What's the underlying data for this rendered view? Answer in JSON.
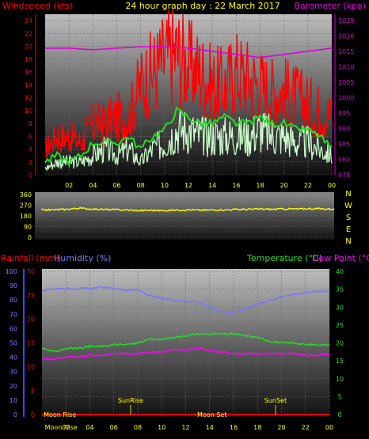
{
  "chart_data": [
    {
      "type": "line",
      "panel": "wind-barometer",
      "title": "24 hour graph day : 22 March 2017",
      "left_axis_label": "Windspeed (kts)",
      "right_axis_label": "Barometer (kpa)",
      "left_ticks": [
        "0",
        "2",
        "4",
        "6",
        "8",
        "10",
        "12",
        "14",
        "16",
        "18",
        "20",
        "22",
        "24"
      ],
      "right_ticks": [
        "975",
        "980",
        "985",
        "990",
        "995",
        "1000",
        "1005",
        "1010",
        "1015",
        "1020",
        "1025"
      ],
      "x_ticks": [
        "02",
        "04",
        "06",
        "08",
        "10",
        "12",
        "14",
        "16",
        "18",
        "20",
        "22",
        "00"
      ],
      "ylim_left": [
        0,
        25
      ],
      "ylim_right": [
        975,
        1027
      ],
      "xlim": [
        0,
        24
      ],
      "series": [
        {
          "key": "gust",
          "color": "#ff0000",
          "x": [
            0,
            1,
            2,
            3,
            4,
            5,
            6,
            7,
            8,
            9,
            10,
            11,
            12,
            13,
            14,
            15,
            16,
            17,
            18,
            19,
            20,
            21,
            22,
            23,
            24
          ],
          "values": [
            4,
            6,
            6,
            5,
            8,
            8,
            9,
            9,
            14,
            16,
            18,
            19,
            17,
            16,
            14,
            14,
            16,
            15,
            14,
            13,
            13,
            12,
            11,
            10,
            9
          ]
        },
        {
          "key": "average",
          "color": "#22dd22",
          "x": [
            0,
            1,
            2,
            3,
            4,
            5,
            6,
            7,
            8,
            9,
            10,
            11,
            12,
            13,
            14,
            15,
            16,
            17,
            18,
            19,
            20,
            21,
            22,
            23,
            24
          ],
          "values": [
            2,
            3,
            2,
            3,
            5,
            5,
            5,
            6,
            4,
            6,
            7,
            10,
            9,
            8,
            8,
            9,
            8,
            8,
            9,
            8,
            8,
            7,
            7,
            6,
            4
          ]
        },
        {
          "key": "wind-detail",
          "color": "#ccffcc",
          "x": [
            0,
            1,
            2,
            3,
            4,
            5,
            6,
            7,
            8,
            9,
            10,
            11,
            12,
            13,
            14,
            15,
            16,
            17,
            18,
            19,
            20,
            21,
            22,
            23,
            24
          ],
          "values": [
            1,
            2,
            2,
            2,
            3,
            4,
            3,
            4,
            2,
            4,
            5,
            7,
            7,
            6,
            6,
            6,
            6,
            6,
            7,
            6,
            6,
            5,
            5,
            4,
            3
          ]
        },
        {
          "key": "barometer",
          "color": "#dd00dd",
          "axis": "right",
          "x": [
            0,
            2,
            4,
            6,
            8,
            10,
            12,
            14,
            16,
            18,
            20,
            22,
            24
          ],
          "values": [
            1016,
            1016,
            1015.5,
            1016,
            1016.5,
            1016.5,
            1016,
            1015,
            1014,
            1013,
            1014,
            1015,
            1016
          ]
        }
      ]
    },
    {
      "type": "line",
      "panel": "wind-direction",
      "left_ticks": [
        "0",
        "90",
        "180",
        "270",
        "360"
      ],
      "right_ticks": [
        "N",
        "E",
        "S",
        "W",
        "N"
      ],
      "ylim": [
        0,
        360
      ],
      "xlim": [
        0,
        24
      ],
      "series": [
        {
          "key": "direction",
          "color": "#ffff00",
          "x": [
            0,
            1,
            2,
            3,
            4,
            5,
            6,
            7,
            8,
            9,
            10,
            11,
            12,
            13,
            14,
            15,
            16,
            17,
            18,
            19,
            20,
            21,
            22,
            23,
            24
          ],
          "values": [
            230,
            232,
            235,
            245,
            240,
            235,
            232,
            230,
            225,
            228,
            225,
            230,
            232,
            228,
            230,
            232,
            235,
            236,
            238,
            236,
            240,
            238,
            242,
            240,
            238
          ]
        }
      ]
    },
    {
      "type": "line",
      "panel": "rain-humidity-temperature",
      "label_rainfall": "Rainfall (mm)",
      "label_humidity": "Humidity (%)",
      "label_temperature": "Temperature (°C)",
      "label_dewpoint": "Dew Point (°C)",
      "rain_ticks": [
        "0",
        "5",
        "10",
        "15",
        "20",
        "25",
        "30"
      ],
      "humidity_ticks": [
        "0",
        "10",
        "20",
        "30",
        "40",
        "50",
        "60",
        "70",
        "80",
        "90",
        "100"
      ],
      "temperature_ticks": [
        "0",
        "5",
        "10",
        "15",
        "20",
        "25",
        "30",
        "35",
        "40"
      ],
      "x_ticks": [
        "02",
        "04",
        "06",
        "08",
        "10",
        "12",
        "14",
        "16",
        "18",
        "20",
        "22",
        "00"
      ],
      "ylim_temperature": [
        0,
        40
      ],
      "ylim_humidity": [
        0,
        100
      ],
      "xlim": [
        0,
        24
      ],
      "series": [
        {
          "key": "humidity",
          "color": "#7777ff",
          "axis": "humidity",
          "x": [
            0,
            1,
            2,
            3,
            4,
            5,
            6,
            7,
            8,
            9,
            10,
            11,
            12,
            13,
            14,
            15,
            16,
            17,
            18,
            19,
            20,
            21,
            22,
            23,
            24
          ],
          "values": [
            86,
            88,
            88,
            88,
            88,
            89,
            88,
            87,
            87,
            83,
            81,
            80,
            79,
            79,
            75,
            72,
            71,
            74,
            77,
            80,
            82,
            84,
            85,
            86,
            86
          ]
        },
        {
          "key": "temperature",
          "color": "#22dd22",
          "axis": "temperature",
          "x": [
            0,
            1,
            2,
            3,
            4,
            5,
            6,
            7,
            8,
            9,
            10,
            11,
            12,
            13,
            14,
            15,
            16,
            17,
            18,
            19,
            20,
            21,
            22,
            23,
            24
          ],
          "values": [
            18.5,
            17.5,
            18.5,
            18.5,
            19,
            19,
            19.5,
            19.5,
            20,
            21,
            21,
            21.5,
            22,
            22.5,
            22.5,
            22.5,
            22.5,
            22,
            21.5,
            20.5,
            20,
            20,
            19.5,
            19.5,
            19.5
          ]
        },
        {
          "key": "dewpoint",
          "color": "#ff00ff",
          "axis": "temperature",
          "x": [
            0,
            1,
            2,
            3,
            4,
            5,
            6,
            7,
            8,
            9,
            10,
            11,
            12,
            13,
            14,
            15,
            16,
            17,
            18,
            19,
            20,
            21,
            22,
            23,
            24
          ],
          "values": [
            15.5,
            15.5,
            16,
            16,
            16.5,
            16.5,
            17,
            17,
            17,
            17.5,
            17.5,
            18,
            18,
            18.5,
            18,
            17.5,
            17,
            17,
            17,
            17,
            17,
            17,
            16.5,
            16.5,
            17
          ]
        },
        {
          "key": "rainfall",
          "color": "#ff0000",
          "axis": "rain",
          "x": [
            0,
            24
          ],
          "values": [
            0,
            0
          ]
        }
      ],
      "events": [
        {
          "label": "Moon Rise",
          "hour": 1.5
        },
        {
          "label": "SunRise",
          "hour": 7.4
        },
        {
          "label": "Moon Set",
          "hour": 14.2
        },
        {
          "label": "SunSet",
          "hour": 19.5
        },
        {
          "label": "Moon Rise",
          "hour": 1.6
        }
      ]
    }
  ]
}
